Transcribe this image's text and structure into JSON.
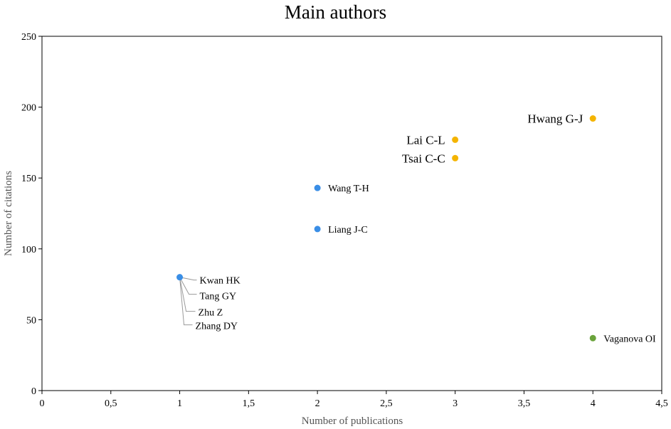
{
  "chart_data": {
    "type": "scatter",
    "title": "Main authors",
    "xlabel": "Number of publications",
    "ylabel": "Number of citations",
    "xlim": [
      0,
      4.5
    ],
    "ylim": [
      0,
      250
    ],
    "x_ticks": [
      0,
      0.5,
      1,
      1.5,
      2,
      2.5,
      3,
      3.5,
      4,
      4.5
    ],
    "x_tick_labels": [
      "0",
      "0,5",
      "1",
      "1,5",
      "2",
      "2,5",
      "3",
      "3,5",
      "4",
      "4,5"
    ],
    "y_ticks": [
      0,
      50,
      100,
      150,
      200,
      250
    ],
    "y_tick_labels": [
      "0",
      "50",
      "100",
      "150",
      "200",
      "250"
    ],
    "grid": false,
    "legend": false,
    "colors": {
      "blue": "#3a8ee6",
      "orange": "#f4b400",
      "green": "#6aa33b",
      "leader": "#9a9a9a"
    },
    "points": [
      {
        "name": "Hwang G-J",
        "x": 4,
        "y": 192,
        "color": "orange",
        "label_side": "left",
        "label_size": "large"
      },
      {
        "name": "Lai C-L",
        "x": 3,
        "y": 177,
        "color": "orange",
        "label_side": "left",
        "label_size": "large"
      },
      {
        "name": "Tsai C-C",
        "x": 3,
        "y": 164,
        "color": "orange",
        "label_side": "left",
        "label_size": "large"
      },
      {
        "name": "Wang T-H",
        "x": 2,
        "y": 143,
        "color": "blue",
        "label_side": "right",
        "label_size": "small"
      },
      {
        "name": "Liang J-C",
        "x": 2,
        "y": 114,
        "color": "blue",
        "label_side": "right",
        "label_size": "small"
      },
      {
        "name": "Vaganova OI",
        "x": 4,
        "y": 37,
        "color": "green",
        "label_side": "right",
        "label_size": "small"
      }
    ],
    "clustered_point": {
      "x": 1,
      "y": 80,
      "color": "blue",
      "names": [
        "Kwan HK",
        "Tang GY",
        "Zhu Z",
        "Zhang DY"
      ]
    }
  }
}
